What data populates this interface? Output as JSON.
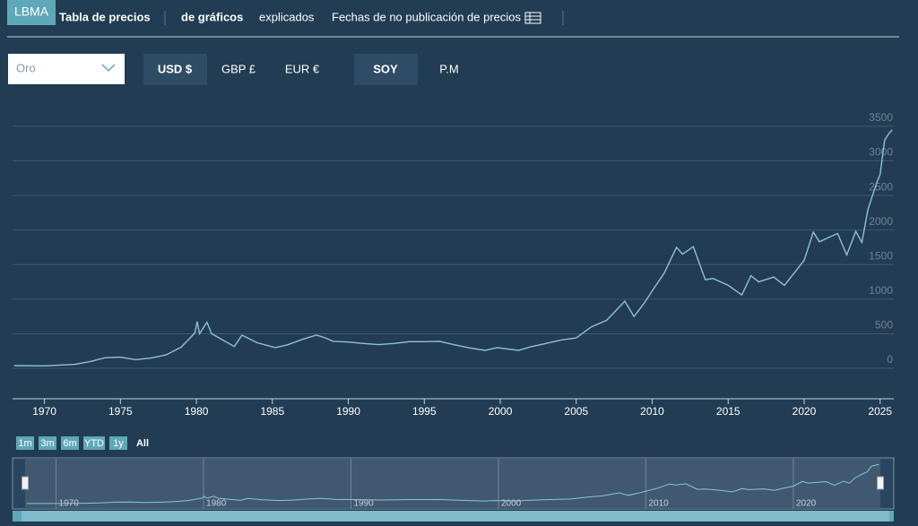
{
  "logo": "LBMA",
  "nav": [
    "Tabla de precios",
    "de gráficos",
    "explicados",
    "Fechas de no publicación de precios"
  ],
  "metal_select": "Oro",
  "currencies": [
    "USD $",
    "GBP £",
    "EUR €"
  ],
  "sessions": [
    "SOY",
    "P.M"
  ],
  "range_buttons": [
    "1m",
    "3m",
    "6m",
    "YTD",
    "1y",
    "All"
  ],
  "chart_data": {
    "type": "line",
    "color": "#8fc3d0",
    "x": [
      1968,
      1970,
      1972,
      1973,
      1974,
      1975,
      1976,
      1977,
      1978,
      1979,
      1979.9,
      1980.05,
      1980.2,
      1980.7,
      1981,
      1982.5,
      1983,
      1984,
      1985.2,
      1986,
      1987,
      1987.9,
      1988.5,
      1989,
      1990,
      1991,
      1992,
      1993,
      1994,
      1995,
      1996,
      1997,
      1998,
      1999,
      1999.8,
      2001.2,
      2002,
      2003,
      2004,
      2005,
      2006,
      2007,
      2008.2,
      2008.8,
      2009.5,
      2010,
      2010.8,
      2011.6,
      2012,
      2012.7,
      2013.5,
      2014,
      2015,
      2015.9,
      2016.5,
      2017,
      2018,
      2018.7,
      2019.5,
      2020,
      2020.6,
      2021,
      2022.2,
      2022.8,
      2023.4,
      2023.8,
      2024.2,
      2024.8,
      2025,
      2025.3,
      2025.6,
      2025.8
    ],
    "values": [
      39,
      35,
      58,
      97,
      154,
      161,
      125,
      148,
      193,
      306,
      512,
      675,
      500,
      666,
      500,
      315,
      480,
      370,
      300,
      340,
      420,
      480,
      440,
      390,
      380,
      360,
      343,
      360,
      385,
      385,
      390,
      340,
      295,
      260,
      300,
      260,
      310,
      360,
      410,
      440,
      600,
      695,
      970,
      750,
      950,
      1120,
      1380,
      1750,
      1650,
      1760,
      1280,
      1300,
      1200,
      1060,
      1340,
      1250,
      1320,
      1200,
      1420,
      1560,
      1970,
      1830,
      1950,
      1640,
      1980,
      1820,
      2300,
      2700,
      2800,
      3300,
      3400,
      3450
    ],
    "xlim": [
      1967.9,
      2025.9
    ],
    "ylim": [
      -440,
      4030
    ],
    "xticks": [
      1970,
      1975,
      1980,
      1985,
      1990,
      1995,
      2000,
      2005,
      2010,
      2015,
      2020,
      2025
    ],
    "yticks": [
      0,
      500,
      1000,
      1500,
      2000,
      2500,
      3000,
      3500
    ],
    "grid": true,
    "navigator_xticks": [
      1970,
      1980,
      1990,
      2000,
      2010,
      2020
    ]
  }
}
